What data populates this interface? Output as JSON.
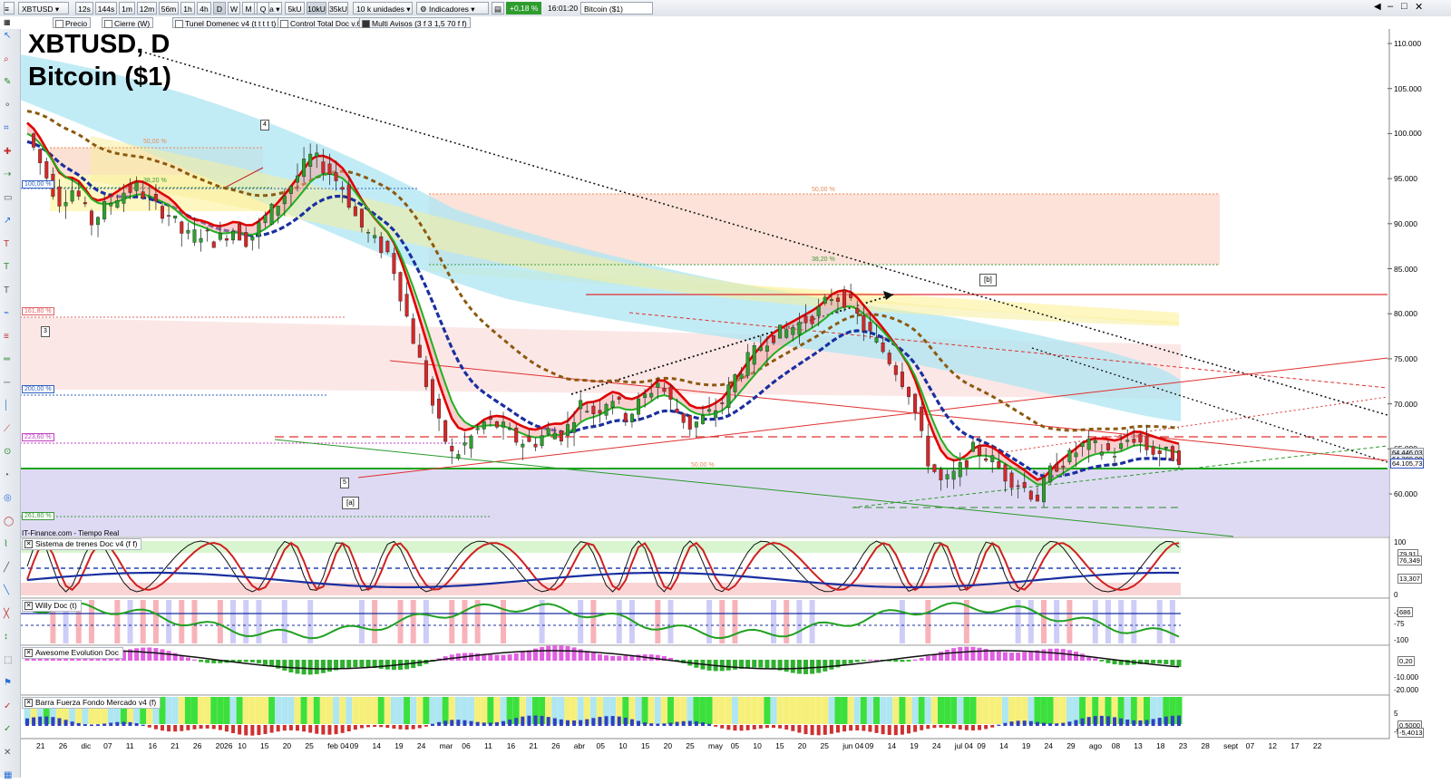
{
  "toolbar": {
    "symbol": "XBTUSD",
    "timeframes": [
      "12s",
      "144s",
      "1m",
      "12m",
      "56m",
      "1h",
      "4h",
      "D",
      "W",
      "M",
      "Q"
    ],
    "timeframe_selected": "D",
    "period": "1 día",
    "units": [
      "5kU",
      "10kU",
      "35kU"
    ],
    "unit_selected": "10kU",
    "quantity": "10 k unidades",
    "indicators_label": "Indicadores",
    "change": "+0,18 %",
    "time": "16:01:20",
    "instrument": "Bitcoin ($1)"
  },
  "indicator_bar": [
    {
      "label": "Precio",
      "checked": false
    },
    {
      "label": "Cierre (W)",
      "checked": false
    },
    {
      "label": "Tunel Domenec v4 (t t t t t)",
      "checked": false
    },
    {
      "label": "Control Total Doc v.6",
      "checked": false
    },
    {
      "label": "Multi Avisos (3 f 3 1,5 70 f f)",
      "checked": true
    }
  ],
  "chart": {
    "title_line1": "XBTUSD, D",
    "title_line2": "Bitcoin ($1)",
    "source": "IT-Finance.com - Tiempo Real",
    "price_axis": [
      "110.000",
      "105.000",
      "100.000",
      "95.000",
      "90.000",
      "85.000",
      "80.000",
      "75.000",
      "70.000",
      "65.000",
      "60.000"
    ],
    "price_badges": [
      "64.446,03",
      "64.280,00",
      "64.105,73"
    ],
    "x_labels": [
      "21",
      "26",
      "dic",
      "07",
      "11",
      "16",
      "21",
      "26",
      "2026",
      "10",
      "15",
      "20",
      "25",
      "feb 04",
      "09",
      "14",
      "19",
      "24",
      "mar",
      "06",
      "11",
      "16",
      "21",
      "26",
      "abr",
      "05",
      "10",
      "15",
      "20",
      "25",
      "may",
      "05",
      "10",
      "15",
      "20",
      "25",
      "jun 04",
      "09",
      "14",
      "19",
      "24",
      "jul 04",
      "09",
      "14",
      "19",
      "24",
      "29",
      "ago",
      "08",
      "13",
      "18",
      "23",
      "28",
      "sept",
      "07",
      "12",
      "17",
      "22"
    ],
    "fib_labels": [
      "50,00 %",
      "38,20 %",
      "100,00 %",
      "161,80 %",
      "200,00 %",
      "223,60 %",
      "261,80 %",
      "50,00 %",
      "38,20 %",
      "50,00 %"
    ],
    "wave_labels": [
      "4",
      "3",
      "5",
      "[a]",
      "[b]"
    ]
  },
  "chart_data": {
    "type": "candlestick",
    "symbol": "XBTUSD",
    "timeframe": "D",
    "candles_close_approx": [
      100000,
      96000,
      92500,
      94000,
      90000,
      92000,
      93500,
      94000,
      92000,
      91000,
      88500,
      89000,
      88000,
      89500,
      88000,
      90500,
      92500,
      95000,
      97500,
      96000,
      94000,
      90000,
      88000,
      86500,
      80000,
      74000,
      68000,
      64000,
      66000,
      68000,
      67500,
      66000,
      65500,
      67000,
      66500,
      70000,
      69000,
      71000,
      68500,
      70500,
      72500,
      69500,
      67500,
      68500,
      70000,
      73500,
      75500,
      77500,
      78000,
      79000,
      80000,
      82000,
      81500,
      78500,
      76500,
      74000,
      71000,
      64000,
      61000,
      62500,
      65000,
      64000,
      62000,
      61000,
      59500,
      63000,
      64000,
      65500,
      65000,
      64500,
      66500,
      65000,
      64500,
      64105
    ],
    "ylim": [
      57000,
      112000
    ]
  },
  "panels": {
    "trenes": {
      "label": "Sistema de trenes Doc v4 (f f)",
      "axis": [
        "100",
        "0"
      ],
      "badges": [
        "79,91",
        "76,349",
        "13,307"
      ]
    },
    "willy": {
      "label": "Willy Doc (t)",
      "axis": [
        "-25",
        "-75",
        "-100"
      ],
      "badges": [
        "686"
      ]
    },
    "awesome": {
      "label": "Awesome Evolution Doc",
      "axis": [
        "-10.000",
        "-20.000"
      ],
      "badges": [
        "0,20"
      ]
    },
    "barra": {
      "label": "Barra Fuerza Fondo Mercado v4 (f)",
      "axis": [
        "5",
        "-5"
      ],
      "badges": [
        "0,5000",
        "-5,4013"
      ]
    }
  },
  "colors": {
    "bull": "#2ca02c",
    "bear": "#d62728",
    "ema_red": "#e00000",
    "ema_green": "#20b020",
    "dash_blue": "#1a2fa0",
    "dash_brown": "#8b5a10",
    "support": "#1aa51a"
  }
}
